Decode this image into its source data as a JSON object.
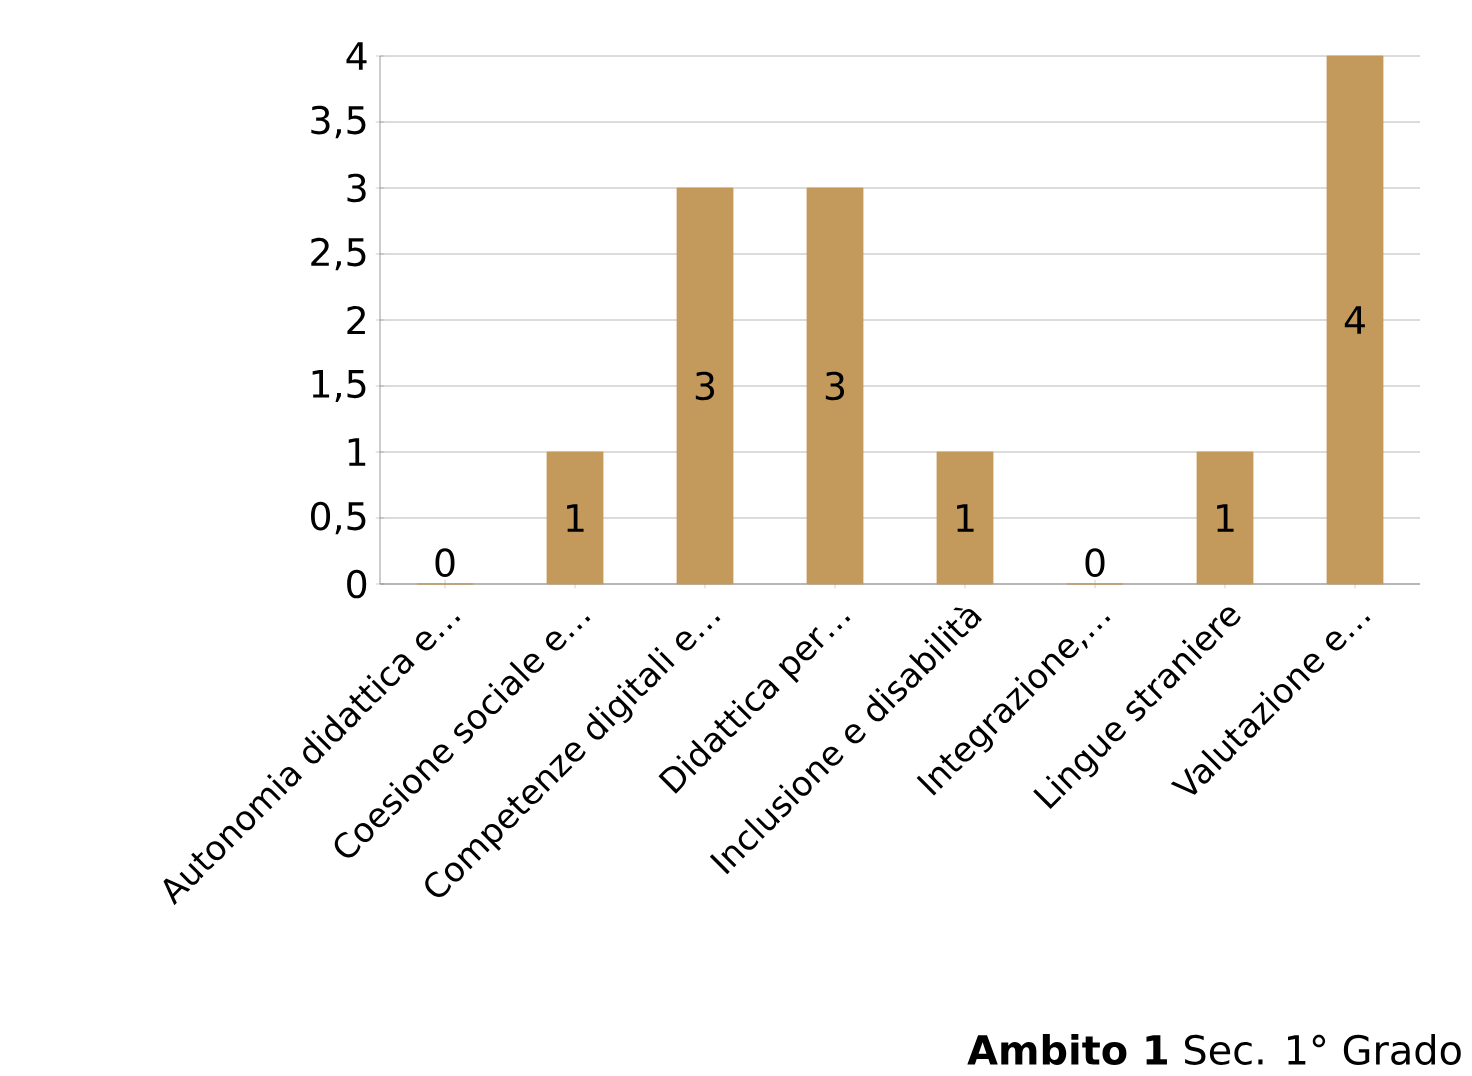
{
  "chart_data": {
    "type": "bar",
    "title": "**Ambito 1** Sec. 1° Grado",
    "categories": [
      "Autonomia didattica e…",
      "Coesione sociale e…",
      "Competenze digitali e…",
      "Didattica per…",
      "Inclusione e disabilità",
      "Integrazione,…",
      "Lingue straniere",
      "Valutazione e…"
    ],
    "values": [
      0,
      1,
      3,
      3,
      1,
      0,
      1,
      4
    ],
    "color": "#c49a5c",
    "ylim": [
      0,
      4
    ],
    "yticks": [
      0,
      {
        "value": 0.5,
        "label": "0,5"
      },
      1,
      {
        "value": 1.5,
        "label": "1,5"
      },
      2,
      {
        "value": 2.5,
        "label": "2,5"
      },
      3,
      {
        "value": 3.5,
        "label": "3,5"
      },
      4
    ],
    "grid": true,
    "data_labels": true
  }
}
